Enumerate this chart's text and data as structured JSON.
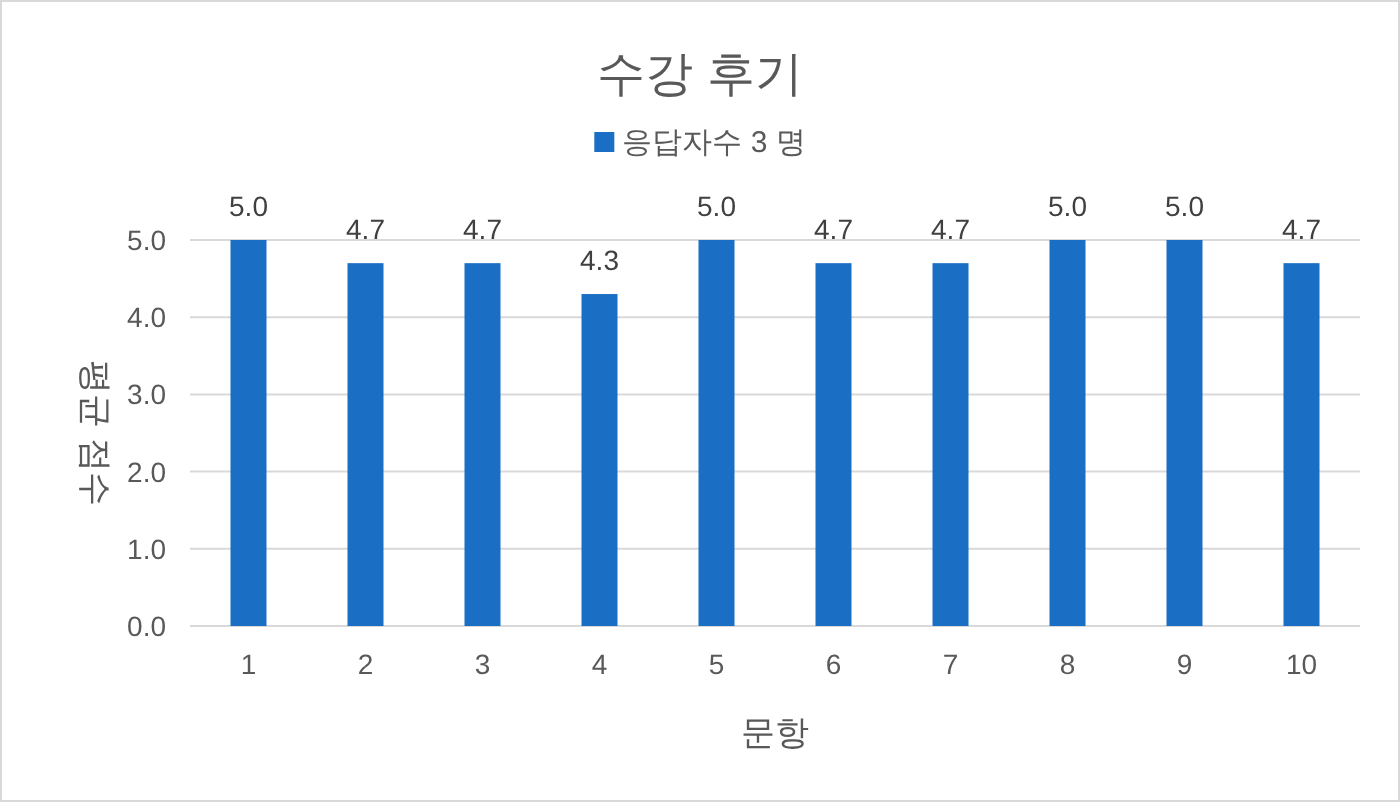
{
  "chart_data": {
    "type": "bar",
    "title": "수강 후기",
    "xlabel": "문항",
    "ylabel": "평균 점수",
    "categories": [
      "1",
      "2",
      "3",
      "4",
      "5",
      "6",
      "7",
      "8",
      "9",
      "10"
    ],
    "series": [
      {
        "name": "응답자수 3 명",
        "color": "#1a6fc4",
        "values": [
          5.0,
          4.7,
          4.7,
          4.3,
          5.0,
          4.7,
          4.7,
          5.0,
          5.0,
          4.7
        ],
        "value_labels": [
          "5.0",
          "4.7",
          "4.7",
          "4.3",
          "5.0",
          "4.7",
          "4.7",
          "5.0",
          "5.0",
          "4.7"
        ]
      }
    ],
    "ylim": [
      0,
      5
    ],
    "yticks": [
      {
        "value": 0,
        "label": "0.0"
      },
      {
        "value": 1,
        "label": "1.0"
      },
      {
        "value": 2,
        "label": "2.0"
      },
      {
        "value": 3,
        "label": "3.0"
      },
      {
        "value": 4,
        "label": "4.0"
      },
      {
        "value": 5,
        "label": "5.0"
      }
    ],
    "grid": "y",
    "legend": "top"
  }
}
